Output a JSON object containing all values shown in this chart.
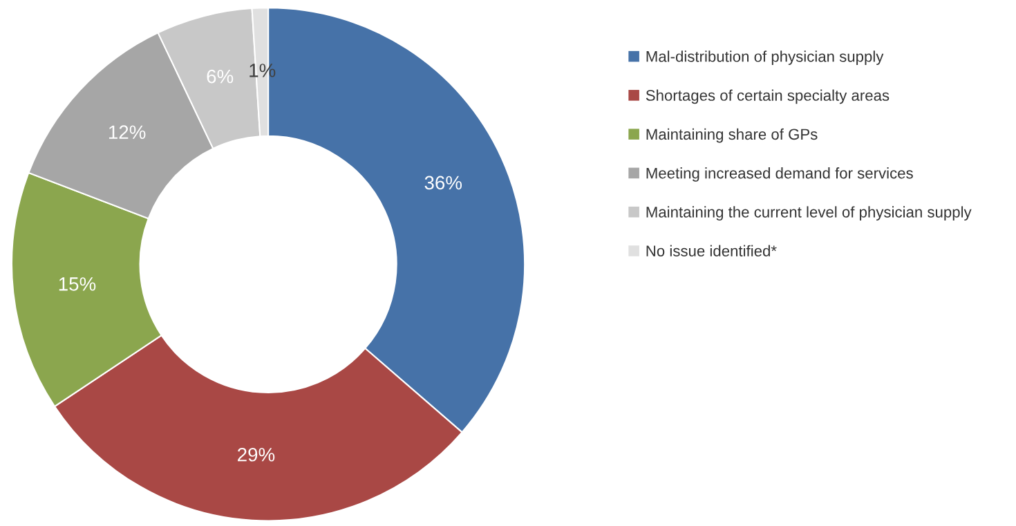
{
  "chart_data": {
    "type": "donut",
    "categories": [
      "Mal-distribution of physician supply",
      "Shortages of certain specialty areas",
      "Maintaining share of GPs",
      "Meeting increased demand for services",
      "Maintaining the current level of physician supply",
      "No issue identified*"
    ],
    "values": [
      36,
      29,
      15,
      12,
      6,
      1
    ],
    "colors": [
      "#4672a8",
      "#a94845",
      "#8ba64e",
      "#a6a6a6",
      "#c8c8c8",
      "#e0e0e0"
    ],
    "value_labels": [
      "36%",
      "29%",
      "15%",
      "12%",
      "6%",
      "1%"
    ],
    "legend": "right"
  }
}
